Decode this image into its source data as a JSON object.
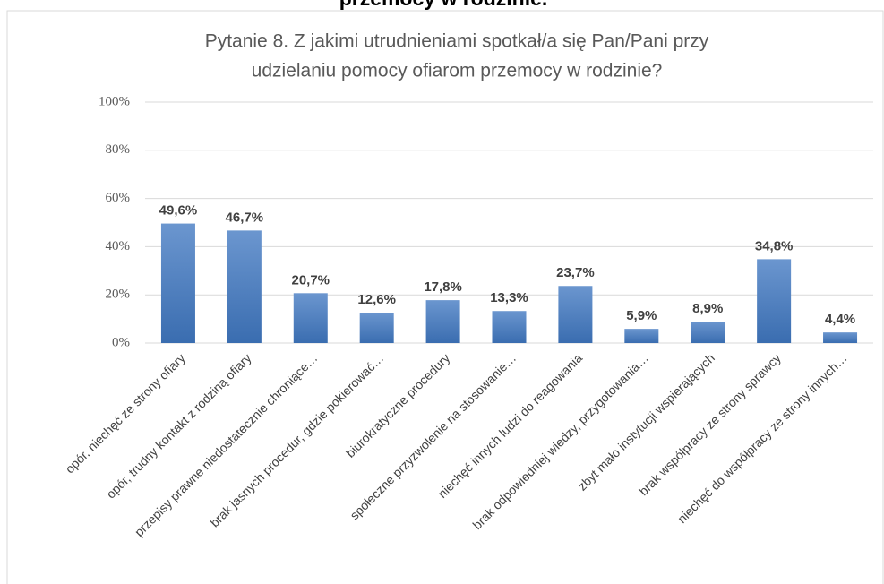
{
  "heading": "przemocy w rodzinie.",
  "chart_data": {
    "type": "bar",
    "title": [
      "Pytanie 8. Z jakimi utrudnieniami spotkał/a się Pan/Pani przy",
      "udzielaniu pomocy ofiarom przemocy w rodzinie?"
    ],
    "categories": [
      "opór, niechęć ze strony ofiary",
      "opór, trudny kontakt z rodziną ofiary",
      "przepisy prawne niedostatecznie chroniące…",
      "brak jasnych procedur, gdzie pokierować…",
      "biurokratyczne procedury",
      "społeczne przyzwolenie na stosowanie…",
      "niechęć innych ludzi do reagowania",
      "brak odpowiedniej wiedzy, przygotowania…",
      "zbyt mało instytucji wspierających",
      "brak współpracy ze strony sprawcy",
      "niechęć do współpracy ze strony innych…"
    ],
    "values": [
      49.6,
      46.7,
      20.7,
      12.6,
      17.8,
      13.3,
      23.7,
      5.9,
      8.9,
      34.8,
      4.4
    ],
    "value_labels": [
      "49,6%",
      "46,7%",
      "20,7%",
      "12,6%",
      "17,8%",
      "13,3%",
      "23,7%",
      "5,9%",
      "8,9%",
      "34,8%",
      "4,4%"
    ],
    "color": "#4f81bd",
    "ylim": [
      0,
      100
    ],
    "yticks": [
      {
        "value": 0,
        "label": "0%"
      },
      {
        "value": 20,
        "label": "20%"
      },
      {
        "value": 40,
        "label": "40%"
      },
      {
        "value": 60,
        "label": "60%"
      },
      {
        "value": 80,
        "label": "80%"
      },
      {
        "value": 100,
        "label": "100%"
      }
    ],
    "grid": true
  }
}
